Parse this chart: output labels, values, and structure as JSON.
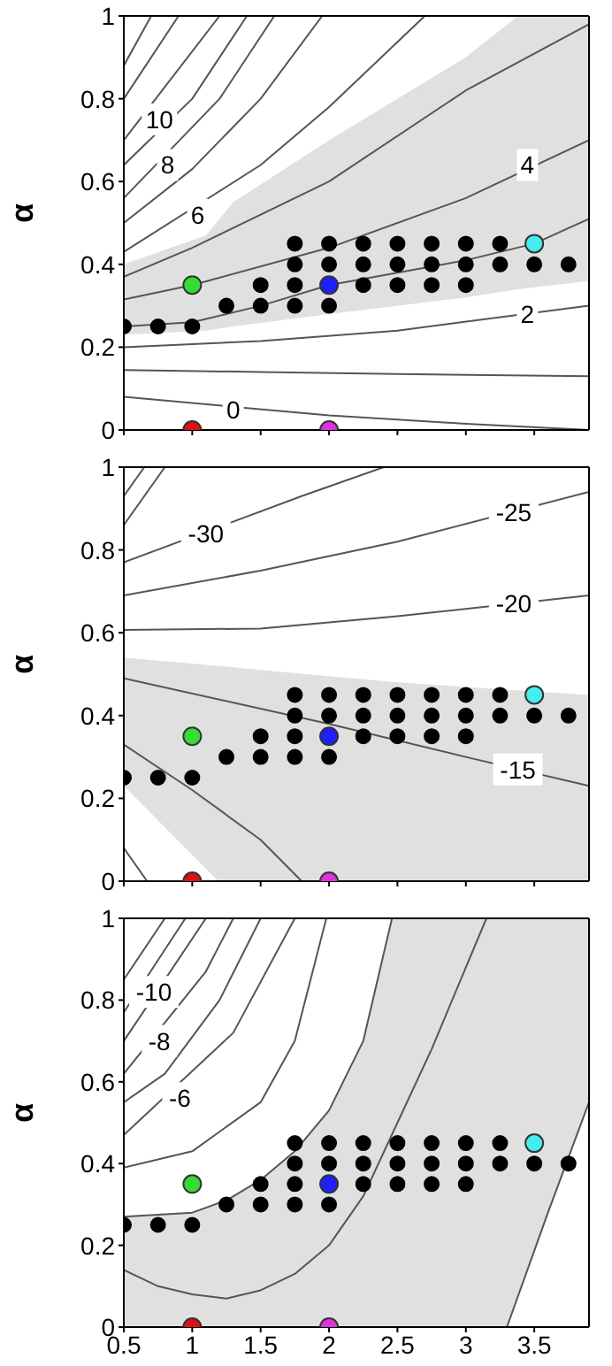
{
  "chart_data": [
    {
      "type": "scatter",
      "ylabel": "α",
      "xlim": [
        0.5,
        3.9
      ],
      "ylim": [
        0,
        1
      ],
      "xticks": [
        0.5,
        1,
        1.5,
        2,
        2.5,
        3,
        3.5
      ],
      "yticks": [
        0,
        0.2,
        0.4,
        0.6,
        0.8,
        1
      ],
      "tick_labels": "y",
      "grid": false,
      "legend": false,
      "series": [
        {
          "type": "area",
          "color": "#e0e0e0",
          "x": [
            0.5,
            1.1,
            1.3,
            2,
            3,
            3.38,
            3.9
          ],
          "values": [
            null,
            null,
            null,
            null,
            null,
            null,
            null
          ],
          "upper": [
            0.4,
            0.47,
            0.55,
            0.7,
            0.9,
            1,
            1
          ],
          "lower": [
            0.23,
            0.24,
            0.25,
            0.28,
            0.32,
            0.34,
            0.36
          ]
        },
        {
          "type": "line",
          "marker": "none",
          "color": "#555555",
          "x": [
            0.5,
            2,
            3,
            3.9
          ],
          "values": [
            0.08,
            0.035,
            0.015,
            0
          ]
        },
        {
          "type": "line",
          "marker": "none",
          "color": "#555555",
          "x": [
            0.5,
            1.5,
            2.5,
            3.9
          ],
          "values": [
            0.145,
            0.14,
            0.135,
            0.13
          ]
        },
        {
          "type": "line",
          "marker": "none",
          "color": "#555555",
          "x": [
            0.5,
            1.5,
            2.5,
            3.9
          ],
          "values": [
            0.2,
            0.215,
            0.24,
            0.3
          ]
        },
        {
          "type": "line",
          "marker": "none",
          "color": "#555555",
          "x": [
            0.5,
            1,
            1.5,
            2,
            2.5,
            3,
            3.5,
            3.9
          ],
          "values": [
            0.25,
            0.26,
            0.3,
            0.35,
            0.38,
            0.41,
            0.45,
            0.51
          ]
        },
        {
          "type": "line",
          "marker": "none",
          "color": "#555555",
          "x": [
            0.5,
            1,
            2,
            3,
            3.9
          ],
          "values": [
            0.315,
            0.35,
            0.44,
            0.56,
            0.7
          ]
        },
        {
          "type": "line",
          "marker": "none",
          "color": "#555555",
          "x": [
            0.5,
            1,
            2,
            3,
            3.9
          ],
          "values": [
            0.37,
            0.44,
            0.6,
            0.82,
            0.98
          ]
        },
        {
          "type": "line",
          "marker": "none",
          "color": "#555555",
          "x": [
            0.5,
            1.5,
            2,
            2.7
          ],
          "values": [
            0.43,
            0.64,
            0.78,
            1
          ]
        },
        {
          "type": "line",
          "marker": "none",
          "color": "#555555",
          "x": [
            0.5,
            1,
            1.5,
            1.95
          ],
          "values": [
            0.5,
            0.63,
            0.8,
            1
          ]
        },
        {
          "type": "line",
          "marker": "none",
          "color": "#555555",
          "x": [
            0.5,
            1.2,
            1.6
          ],
          "values": [
            0.56,
            0.8,
            1
          ]
        },
        {
          "type": "line",
          "marker": "none",
          "color": "#555555",
          "x": [
            0.5,
            1,
            1.4
          ],
          "values": [
            0.64,
            0.8,
            1
          ]
        },
        {
          "type": "line",
          "marker": "none",
          "color": "#555555",
          "x": [
            0.5,
            1.2
          ],
          "values": [
            0.7,
            1
          ]
        },
        {
          "type": "line",
          "marker": "none",
          "color": "#555555",
          "x": [
            0.5,
            0.9
          ],
          "values": [
            0.8,
            1
          ]
        },
        {
          "type": "line",
          "marker": "none",
          "color": "#555555",
          "x": [
            0.5,
            0.7
          ],
          "values": [
            0.88,
            1
          ]
        },
        {
          "marker": "circle",
          "color": "#000000",
          "x": [
            0.5,
            0.75,
            1,
            1.25,
            1.5,
            1.75,
            2,
            1.5,
            1.75,
            2.25,
            2.5,
            2.75,
            3,
            1.75,
            2,
            2.25,
            2.5,
            2.75,
            3,
            3.25,
            3.5,
            3.75,
            1.75,
            2,
            2.25,
            2.5,
            2.75,
            3,
            3.25
          ],
          "values": [
            0.25,
            0.25,
            0.25,
            0.3,
            0.3,
            0.3,
            0.3,
            0.35,
            0.35,
            0.35,
            0.35,
            0.35,
            0.35,
            0.4,
            0.4,
            0.4,
            0.4,
            0.4,
            0.4,
            0.4,
            0.4,
            0.4,
            0.45,
            0.45,
            0.45,
            0.45,
            0.45,
            0.45,
            0.45
          ]
        },
        {
          "marker": "circle",
          "color": "#33dd33",
          "x": [
            1
          ],
          "values": [
            0.35
          ]
        },
        {
          "marker": "circle",
          "color": "#1f1fff",
          "x": [
            2
          ],
          "values": [
            0.35
          ]
        },
        {
          "marker": "circle",
          "color": "#44eeee",
          "x": [
            3.5
          ],
          "values": [
            0.45
          ]
        },
        {
          "marker": "circle",
          "color": "#dd1111",
          "x": [
            1
          ],
          "values": [
            0
          ]
        },
        {
          "marker": "circle",
          "color": "#dd33dd",
          "x": [
            2
          ],
          "values": [
            0
          ]
        }
      ],
      "annotations": [
        {
          "text": "0",
          "x": 1.3,
          "y": 0.05
        },
        {
          "text": "2",
          "x": 3.45,
          "y": 0.28
        },
        {
          "text": "4",
          "x": 3.45,
          "y": 0.64
        },
        {
          "text": "6",
          "x": 1.04,
          "y": 0.52
        },
        {
          "text": "8",
          "x": 0.82,
          "y": 0.64
        },
        {
          "text": "10",
          "x": 0.76,
          "y": 0.75
        }
      ]
    },
    {
      "type": "scatter",
      "ylabel": "α",
      "xlim": [
        0.5,
        3.9
      ],
      "ylim": [
        0,
        1
      ],
      "xticks": [
        0.5,
        1,
        1.5,
        2,
        2.5,
        3,
        3.5
      ],
      "yticks": [
        0,
        0.2,
        0.4,
        0.6,
        0.8,
        1
      ],
      "tick_labels": "y",
      "grid": false,
      "legend": false,
      "series": [
        {
          "type": "area",
          "color": "#e0e0e0",
          "x": [
            0.5,
            1.19,
            1.5,
            2.5,
            3.9
          ],
          "values": [
            null,
            null,
            null,
            null,
            null
          ],
          "upper": [
            0.54,
            0.52,
            0.51,
            0.48,
            0.45
          ],
          "lower": [
            0.23,
            0,
            0,
            0,
            0
          ]
        },
        {
          "type": "line",
          "marker": "none",
          "color": "#555555",
          "x": [
            0.5,
            1.8,
            2.4
          ],
          "values": [
            0.77,
            0.93,
            1
          ]
        },
        {
          "type": "line",
          "marker": "none",
          "color": "#555555",
          "x": [
            0.5,
            1.5,
            2.5,
            3.9
          ],
          "values": [
            0.69,
            0.75,
            0.82,
            0.94
          ]
        },
        {
          "type": "line",
          "marker": "none",
          "color": "#555555",
          "x": [
            0.5,
            1.5,
            2.5,
            3.9
          ],
          "values": [
            0.607,
            0.61,
            0.64,
            0.69
          ]
        },
        {
          "type": "line",
          "marker": "none",
          "color": "#555555",
          "x": [
            0.5,
            2,
            3,
            3.9
          ],
          "values": [
            0.49,
            0.38,
            0.3,
            0.23
          ]
        },
        {
          "type": "line",
          "marker": "none",
          "color": "#555555",
          "x": [
            0.5,
            1,
            1.5,
            1.8
          ],
          "values": [
            0.33,
            0.22,
            0.1,
            0
          ]
        },
        {
          "type": "line",
          "marker": "none",
          "color": "#555555",
          "x": [
            0.5,
            0.67
          ],
          "values": [
            0.08,
            0
          ]
        },
        {
          "type": "line",
          "marker": "none",
          "color": "#555555",
          "x": [
            0.5,
            0.8
          ],
          "values": [
            0.86,
            1
          ]
        },
        {
          "type": "line",
          "marker": "none",
          "color": "#555555",
          "x": [
            0.5,
            0.65
          ],
          "values": [
            0.93,
            1
          ]
        },
        {
          "marker": "circle",
          "color": "#000000",
          "x": [
            0.5,
            0.75,
            1,
            1.25,
            1.5,
            1.75,
            2,
            1.5,
            1.75,
            2.25,
            2.5,
            2.75,
            3,
            1.75,
            2,
            2.25,
            2.5,
            2.75,
            3,
            3.25,
            3.5,
            3.75,
            1.75,
            2,
            2.25,
            2.5,
            2.75,
            3,
            3.25
          ],
          "values": [
            0.25,
            0.25,
            0.25,
            0.3,
            0.3,
            0.3,
            0.3,
            0.35,
            0.35,
            0.35,
            0.35,
            0.35,
            0.35,
            0.4,
            0.4,
            0.4,
            0.4,
            0.4,
            0.4,
            0.4,
            0.4,
            0.4,
            0.45,
            0.45,
            0.45,
            0.45,
            0.45,
            0.45,
            0.45
          ]
        },
        {
          "marker": "circle",
          "color": "#33dd33",
          "x": [
            1
          ],
          "values": [
            0.35
          ]
        },
        {
          "marker": "circle",
          "color": "#1f1fff",
          "x": [
            2
          ],
          "values": [
            0.35
          ]
        },
        {
          "marker": "circle",
          "color": "#44eeee",
          "x": [
            3.5
          ],
          "values": [
            0.45
          ]
        },
        {
          "marker": "circle",
          "color": "#dd1111",
          "x": [
            1
          ],
          "values": [
            0
          ]
        },
        {
          "marker": "circle",
          "color": "#dd33dd",
          "x": [
            2
          ],
          "values": [
            0
          ]
        }
      ],
      "annotations": [
        {
          "text": "-30",
          "x": 1.1,
          "y": 0.84
        },
        {
          "text": "-25",
          "x": 3.35,
          "y": 0.89
        },
        {
          "text": "-20",
          "x": 3.35,
          "y": 0.67
        },
        {
          "text": "-15",
          "x": 3.38,
          "y": 0.27
        }
      ]
    },
    {
      "type": "scatter",
      "ylabel": "α",
      "xlim": [
        0.5,
        3.9
      ],
      "ylim": [
        0,
        1
      ],
      "xticks": [
        0.5,
        1,
        1.5,
        2,
        2.5,
        3,
        3.5
      ],
      "yticks": [
        0,
        0.2,
        0.4,
        0.6,
        0.8,
        1
      ],
      "grid": false,
      "legend": false,
      "series": [
        {
          "type": "area",
          "color": "#e0e0e0",
          "x": [
            0.5,
            1,
            1.25,
            1.5,
            1.75,
            2,
            2.25,
            2.46,
            3.3,
            3.6,
            3.9
          ],
          "values": [
            null,
            null,
            null,
            null,
            null,
            null,
            null,
            null,
            null,
            null,
            null
          ],
          "upper": [
            0.27,
            0.28,
            0.31,
            0.36,
            0.43,
            0.53,
            0.7,
            1,
            1,
            1,
            1
          ],
          "lower": [
            0,
            0,
            0,
            0,
            0,
            0,
            0,
            0,
            0,
            0.28,
            0.55
          ]
        },
        {
          "type": "line",
          "marker": "none",
          "color": "#555555",
          "x": [
            0.5,
            1,
            1.25,
            1.5,
            1.75,
            2,
            2.25,
            2.46
          ],
          "values": [
            0.27,
            0.28,
            0.31,
            0.36,
            0.43,
            0.53,
            0.7,
            1
          ]
        },
        {
          "type": "line",
          "marker": "none",
          "color": "#555555",
          "x": [
            0.5,
            0.75,
            1,
            1.25,
            1.5,
            1.75,
            2,
            2.25,
            2.5,
            2.75,
            3.15
          ],
          "values": [
            0.14,
            0.1,
            0.08,
            0.07,
            0.09,
            0.13,
            0.2,
            0.32,
            0.5,
            0.68,
            1
          ]
        },
        {
          "type": "line",
          "marker": "none",
          "color": "#555555",
          "x": [
            3.3,
            3.6,
            3.9
          ],
          "values": [
            0,
            0.28,
            0.55
          ]
        },
        {
          "type": "line",
          "marker": "none",
          "color": "#555555",
          "x": [
            0.5,
            1,
            1.5,
            1.75,
            1.98
          ],
          "values": [
            0.39,
            0.43,
            0.55,
            0.7,
            1
          ]
        },
        {
          "type": "line",
          "marker": "none",
          "color": "#555555",
          "x": [
            0.5,
            1.3,
            1.75
          ],
          "values": [
            0.47,
            0.72,
            1
          ]
        },
        {
          "type": "line",
          "marker": "none",
          "color": "#555555",
          "x": [
            0.5,
            0.8,
            1.2,
            1.5
          ],
          "values": [
            0.55,
            0.62,
            0.8,
            1
          ]
        },
        {
          "type": "line",
          "marker": "none",
          "color": "#555555",
          "x": [
            0.5,
            1.1,
            1.3
          ],
          "values": [
            0.62,
            0.87,
            1
          ]
        },
        {
          "type": "line",
          "marker": "none",
          "color": "#555555",
          "x": [
            0.5,
            1.1
          ],
          "values": [
            0.7,
            1
          ]
        },
        {
          "type": "line",
          "marker": "none",
          "color": "#555555",
          "x": [
            0.5,
            0.95
          ],
          "values": [
            0.77,
            1
          ]
        },
        {
          "type": "line",
          "marker": "none",
          "color": "#555555",
          "x": [
            0.5,
            0.8
          ],
          "values": [
            0.85,
            1
          ]
        },
        {
          "marker": "circle",
          "color": "#000000",
          "x": [
            0.5,
            0.75,
            1,
            1.25,
            1.5,
            1.75,
            2,
            1.5,
            1.75,
            2.25,
            2.5,
            2.75,
            3,
            1.75,
            2,
            2.25,
            2.5,
            2.75,
            3,
            3.25,
            3.5,
            3.75,
            1.75,
            2,
            2.25,
            2.5,
            2.75,
            3,
            3.25
          ],
          "values": [
            0.25,
            0.25,
            0.25,
            0.3,
            0.3,
            0.3,
            0.3,
            0.35,
            0.35,
            0.35,
            0.35,
            0.35,
            0.35,
            0.4,
            0.4,
            0.4,
            0.4,
            0.4,
            0.4,
            0.4,
            0.4,
            0.4,
            0.45,
            0.45,
            0.45,
            0.45,
            0.45,
            0.45,
            0.45
          ]
        },
        {
          "marker": "circle",
          "color": "#33dd33",
          "x": [
            1
          ],
          "values": [
            0.35
          ]
        },
        {
          "marker": "circle",
          "color": "#1f1fff",
          "x": [
            2
          ],
          "values": [
            0.35
          ]
        },
        {
          "marker": "circle",
          "color": "#44eeee",
          "x": [
            3.5
          ],
          "values": [
            0.45
          ]
        },
        {
          "marker": "circle",
          "color": "#dd1111",
          "x": [
            1
          ],
          "values": [
            0
          ]
        },
        {
          "marker": "circle",
          "color": "#dd33dd",
          "x": [
            2
          ],
          "values": [
            0
          ]
        }
      ],
      "annotations": [
        {
          "text": "-10",
          "x": 0.72,
          "y": 0.82
        },
        {
          "text": "-8",
          "x": 0.76,
          "y": 0.7
        },
        {
          "text": "-6",
          "x": 0.91,
          "y": 0.56
        }
      ]
    }
  ]
}
